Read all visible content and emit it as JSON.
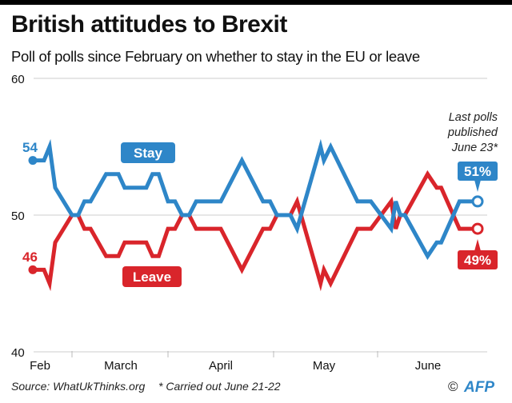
{
  "header": {
    "title": "British attitudes to Brexit",
    "subtitle": "Poll of polls since February on whether to stay in the EU or leave"
  },
  "chart_data": {
    "type": "line",
    "title": "British attitudes to Brexit",
    "subtitle": "Poll of polls since February on whether to stay in the EU or leave",
    "xlabel": "",
    "ylabel": "",
    "ylim": [
      40,
      60
    ],
    "yticks": [
      "60",
      "50",
      "40"
    ],
    "xticks": [
      "Feb",
      "March",
      "April",
      "May",
      "June"
    ],
    "grid": "horizontal",
    "x": [
      "2016-02-16",
      "2016-02-20",
      "2016-02-22",
      "2016-02-24",
      "2016-03-01",
      "2016-03-03",
      "2016-03-05",
      "2016-03-07",
      "2016-03-12",
      "2016-03-16",
      "2016-03-18",
      "2016-03-25",
      "2016-03-27",
      "2016-03-29",
      "2016-04-01",
      "2016-04-03",
      "2016-04-05",
      "2016-04-07",
      "2016-04-09",
      "2016-04-16",
      "2016-04-22",
      "2016-04-28",
      "2016-04-30",
      "2016-05-02",
      "2016-05-06",
      "2016-05-08",
      "2016-05-15",
      "2016-05-16",
      "2016-05-18",
      "2016-05-26",
      "2016-05-30",
      "2016-06-04",
      "2016-06-05",
      "2016-06-06",
      "2016-06-07",
      "2016-06-12",
      "2016-06-14",
      "2016-06-15",
      "2016-06-19",
      "2016-06-21",
      "2016-06-23"
    ],
    "series": [
      {
        "name": "Stay",
        "color": "#2e86c8",
        "values": [
          54,
          54,
          55,
          52,
          50,
          50,
          51,
          51,
          53,
          53,
          52,
          52,
          53,
          53,
          51,
          51,
          50,
          50,
          51,
          51,
          54,
          51,
          51,
          50,
          50,
          49,
          55,
          54,
          55,
          51,
          51,
          49,
          51,
          50,
          50,
          47,
          48,
          48,
          51,
          51,
          51
        ]
      },
      {
        "name": "Leave",
        "color": "#d9252b",
        "values": [
          46,
          46,
          45,
          48,
          50,
          50,
          49,
          49,
          47,
          47,
          48,
          48,
          47,
          47,
          49,
          49,
          50,
          50,
          49,
          49,
          46,
          49,
          49,
          50,
          50,
          51,
          45,
          46,
          45,
          49,
          49,
          51,
          49,
          50,
          50,
          53,
          52,
          52,
          49,
          49,
          49
        ]
      }
    ],
    "start_labels": {
      "stay": "54",
      "leave": "46"
    },
    "end_labels": {
      "stay": "51%",
      "leave": "49%"
    },
    "annotation": [
      "Last polls",
      "published",
      "June 23*"
    ]
  },
  "footer": {
    "source": "Source: WhatUkThinks.org",
    "note": "* Carried out June 21-22",
    "credit": "©",
    "logo": "AFP"
  }
}
